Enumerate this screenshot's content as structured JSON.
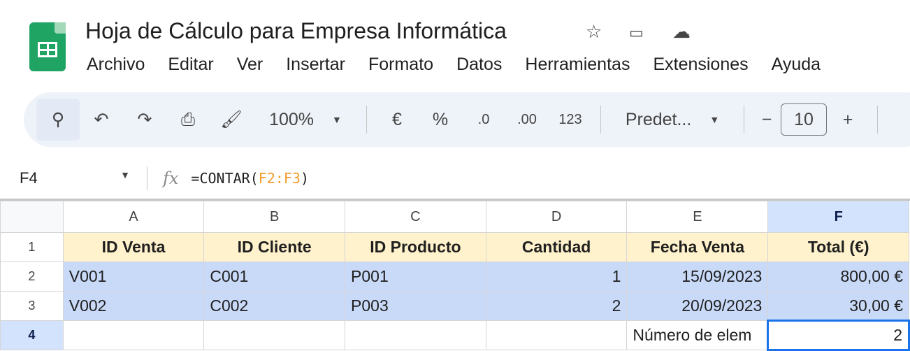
{
  "app": {
    "title": "Hoja de Cálculo para Empresa Informática",
    "icons": [
      "star-icon",
      "move-to-folder-icon",
      "cloud-saved-icon"
    ]
  },
  "menu": [
    "Archivo",
    "Editar",
    "Ver",
    "Insertar",
    "Formato",
    "Datos",
    "Herramientas",
    "Extensiones",
    "Ayuda"
  ],
  "toolbar": {
    "zoom": "100%",
    "currency": "€",
    "percent": "%",
    "dec_decrease": ".0",
    "dec_increase": ".00",
    "number_format": "123",
    "font": "Predet...",
    "font_size": "10",
    "minus": "−",
    "plus": "+"
  },
  "formula_bar": {
    "name_box": "F4",
    "formula_prefix": "=CONTAR(",
    "formula_ref": "F2:F3",
    "formula_suffix": ")"
  },
  "sheet": {
    "columns": [
      "A",
      "B",
      "C",
      "D",
      "E",
      "F"
    ],
    "rows": [
      {
        "num": "1",
        "cells": [
          "ID Venta",
          "ID Cliente",
          "ID Producto",
          "Cantidad",
          "Fecha Venta",
          "Total (€)"
        ]
      },
      {
        "num": "2",
        "cells": [
          "V001",
          "C001",
          "P001",
          "1",
          "15/09/2023",
          "800,00 €"
        ]
      },
      {
        "num": "3",
        "cells": [
          "V002",
          "C002",
          "P003",
          "2",
          "20/09/2023",
          "30,00 €"
        ]
      },
      {
        "num": "4",
        "cells": [
          "",
          "",
          "",
          "",
          "Número de elem",
          "2"
        ]
      }
    ],
    "selected_cell": "F4",
    "colors": {
      "header_fill": "#fff2cc",
      "data_fill": "#c9daf8",
      "selection": "#1a73e8"
    }
  }
}
